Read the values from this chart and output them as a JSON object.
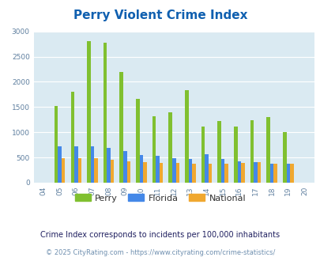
{
  "title": "Perry Violent Crime Index",
  "title_color": "#1060b0",
  "years_labels": [
    "04",
    "05",
    "06",
    "07",
    "08",
    "09",
    "10",
    "11",
    "12",
    "13",
    "14",
    "15",
    "16",
    "17",
    "18",
    "19",
    "20"
  ],
  "perry": [
    0,
    1520,
    1800,
    2800,
    2770,
    2190,
    1660,
    1310,
    1390,
    1840,
    1110,
    1220,
    1110,
    1240,
    1300,
    1010,
    0
  ],
  "florida": [
    0,
    720,
    720,
    720,
    690,
    620,
    550,
    530,
    490,
    470,
    560,
    470,
    420,
    400,
    380,
    380,
    0
  ],
  "national": [
    0,
    480,
    480,
    480,
    450,
    430,
    400,
    390,
    390,
    370,
    370,
    370,
    390,
    400,
    380,
    380,
    0
  ],
  "perry_color": "#80c030",
  "florida_color": "#4488e8",
  "national_color": "#f0a830",
  "bg_color": "#daeaf2",
  "ylim": [
    0,
    3000
  ],
  "yticks": [
    0,
    500,
    1000,
    1500,
    2000,
    2500,
    3000
  ],
  "footnote1": "Crime Index corresponds to incidents per 100,000 inhabitants",
  "footnote2": "© 2025 CityRating.com - https://www.cityrating.com/crime-statistics/",
  "footnote1_color": "#202060",
  "footnote2_color": "#7090b0"
}
